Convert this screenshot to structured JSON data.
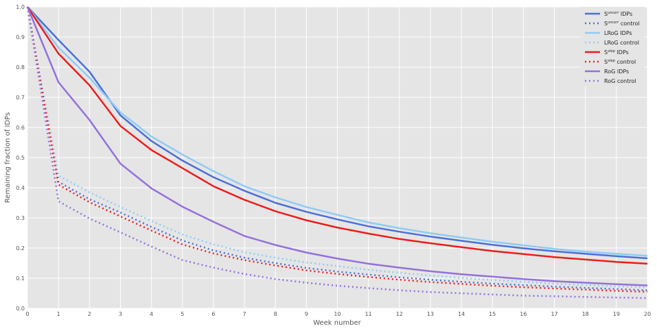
{
  "chart_data": {
    "type": "line",
    "title": "",
    "xlabel": "Week number",
    "ylabel": "Remaining fraction of IDPs",
    "xlim": [
      0,
      20
    ],
    "ylim": [
      0,
      1.0
    ],
    "xticks": [
      "0",
      "1",
      "2",
      "3",
      "4",
      "5",
      "6",
      "7",
      "8",
      "9",
      "10",
      "11",
      "12",
      "13",
      "14",
      "15",
      "16",
      "17",
      "18",
      "19",
      "20"
    ],
    "yticks": [
      "0.0",
      "0.1",
      "0.2",
      "0.3",
      "0.4",
      "0.5",
      "0.6",
      "0.7",
      "0.8",
      "0.9",
      "1.0"
    ],
    "grid": true,
    "legend_position": "top-right",
    "x": [
      0,
      1,
      2,
      3,
      4,
      5,
      6,
      7,
      8,
      9,
      10,
      11,
      12,
      13,
      14,
      15,
      16,
      17,
      18,
      19,
      20
    ],
    "series": [
      {
        "legend_main": "S",
        "legend_sup": "uncorr",
        "legend_rest": " IDPs",
        "color": "#4b6fd8",
        "style": "solid",
        "values": [
          1.0,
          0.89,
          0.785,
          0.64,
          0.555,
          0.49,
          0.435,
          0.39,
          0.35,
          0.32,
          0.295,
          0.272,
          0.254,
          0.238,
          0.224,
          0.211,
          0.199,
          0.189,
          0.181,
          0.173,
          0.166
        ]
      },
      {
        "legend_main": "S",
        "legend_sup": "uncorr",
        "legend_rest": " control",
        "color": "#4b6fd8",
        "style": "dotted",
        "values": [
          1.0,
          0.42,
          0.362,
          0.318,
          0.27,
          0.225,
          0.192,
          0.168,
          0.15,
          0.134,
          0.122,
          0.112,
          0.103,
          0.095,
          0.088,
          0.082,
          0.077,
          0.072,
          0.068,
          0.064,
          0.06
        ]
      },
      {
        "legend_main": "LRoG IDPs",
        "legend_sup": "",
        "legend_rest": "",
        "color": "#8ecbf5",
        "style": "solid",
        "values": [
          1.0,
          0.865,
          0.765,
          0.65,
          0.57,
          0.51,
          0.455,
          0.405,
          0.368,
          0.336,
          0.31,
          0.285,
          0.266,
          0.249,
          0.235,
          0.221,
          0.209,
          0.197,
          0.188,
          0.181,
          0.174
        ]
      },
      {
        "legend_main": "LRoG control",
        "legend_sup": "",
        "legend_rest": "",
        "color": "#8ecbf5",
        "style": "dotted",
        "values": [
          1.0,
          0.44,
          0.385,
          0.336,
          0.29,
          0.245,
          0.212,
          0.186,
          0.168,
          0.152,
          0.14,
          0.128,
          0.118,
          0.109,
          0.101,
          0.094,
          0.088,
          0.082,
          0.077,
          0.073,
          0.069
        ]
      },
      {
        "legend_main": "S",
        "legend_sup": "step",
        "legend_rest": " IDPs",
        "color": "#ee1c1c",
        "style": "solid",
        "values": [
          1.0,
          0.845,
          0.74,
          0.605,
          0.525,
          0.465,
          0.405,
          0.36,
          0.322,
          0.292,
          0.268,
          0.248,
          0.23,
          0.216,
          0.203,
          0.19,
          0.18,
          0.17,
          0.162,
          0.154,
          0.148
        ]
      },
      {
        "legend_main": "S",
        "legend_sup": "step",
        "legend_rest": " control",
        "color": "#ee1c1c",
        "style": "dotted",
        "values": [
          1.0,
          0.41,
          0.352,
          0.305,
          0.258,
          0.212,
          0.182,
          0.16,
          0.142,
          0.126,
          0.114,
          0.104,
          0.095,
          0.087,
          0.081,
          0.075,
          0.07,
          0.066,
          0.062,
          0.058,
          0.055
        ]
      },
      {
        "legend_main": "RoG IDPs",
        "legend_sup": "",
        "legend_rest": "",
        "color": "#9370db",
        "style": "solid",
        "values": [
          1.0,
          0.75,
          0.625,
          0.48,
          0.398,
          0.337,
          0.287,
          0.24,
          0.21,
          0.185,
          0.165,
          0.148,
          0.135,
          0.123,
          0.113,
          0.105,
          0.097,
          0.09,
          0.085,
          0.08,
          0.076
        ]
      },
      {
        "legend_main": "RoG control",
        "legend_sup": "",
        "legend_rest": "",
        "color": "#9370db",
        "style": "dotted",
        "values": [
          1.0,
          0.355,
          0.298,
          0.252,
          0.205,
          0.16,
          0.135,
          0.114,
          0.097,
          0.085,
          0.075,
          0.067,
          0.06,
          0.054,
          0.05,
          0.046,
          0.042,
          0.04,
          0.038,
          0.036,
          0.034
        ]
      }
    ]
  }
}
